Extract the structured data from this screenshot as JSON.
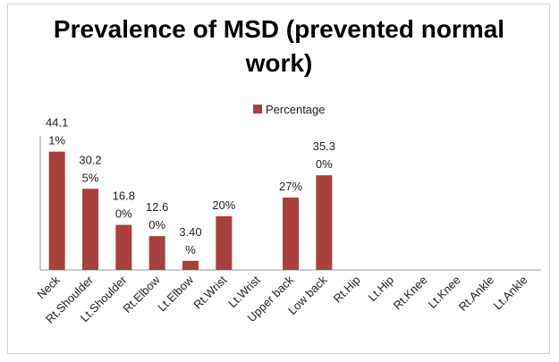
{
  "chart_data": {
    "type": "bar",
    "title": "Prevalence of MSD (prevented normal work)",
    "legend": "Percentage",
    "categories": [
      "Neck",
      "Rt.Shoulder",
      "Lt.Shoulder",
      "Rt.Elbow",
      "Lt.Elbow",
      "Rt.Wrist",
      "Lt.Wrist",
      "Upper back",
      "Low back",
      "Rt.Hip",
      "Lt.Hip",
      "Rt.Knee",
      "Lt.Knee",
      "Rt.Ankle",
      "Lt.Ankle"
    ],
    "values": [
      44.11,
      30.25,
      16.8,
      12.6,
      3.4,
      20,
      null,
      27,
      35.3,
      null,
      null,
      null,
      null,
      null,
      null
    ],
    "value_labels": [
      "44.11%",
      "30.25%",
      "16.80%",
      "12.60%",
      "3.40%",
      "20%",
      null,
      "27%",
      "35.30%",
      null,
      null,
      null,
      null,
      null,
      null
    ],
    "color": "#a8403e",
    "ylim": [
      0,
      50
    ]
  }
}
